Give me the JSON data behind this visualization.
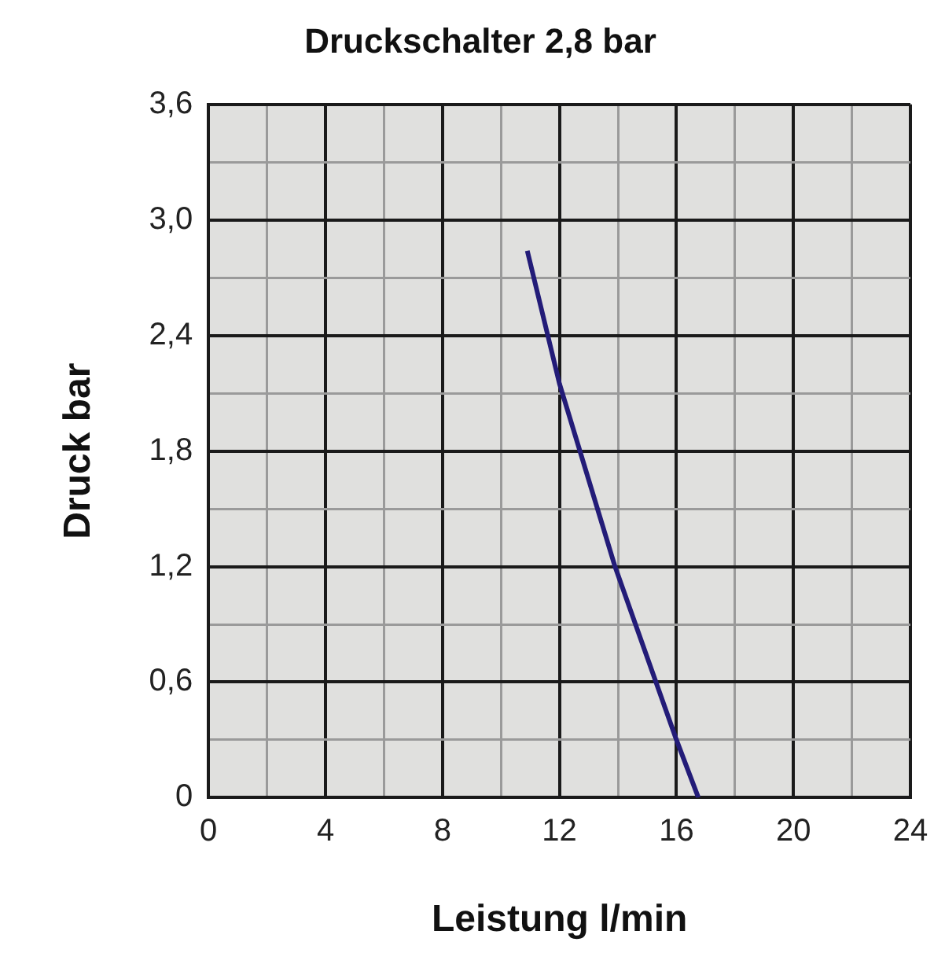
{
  "chart_data": {
    "type": "line",
    "title": "Druckschalter 2,8 bar",
    "xlabel": "Leistung l/min",
    "ylabel": "Druck bar",
    "x": [
      10.9,
      12,
      13.9,
      16,
      16.75
    ],
    "series": [
      {
        "color": "#231c78",
        "values": [
          2.84,
          2.15,
          1.2,
          0.3,
          0
        ]
      }
    ],
    "xlim": [
      0,
      24
    ],
    "xticks": [
      0,
      {
        "value": 2,
        "label": null
      },
      4,
      {
        "value": 6,
        "label": null
      },
      8,
      {
        "value": 10,
        "label": null
      },
      12,
      {
        "value": 14,
        "label": null
      },
      16,
      {
        "value": 18,
        "label": null
      },
      20,
      {
        "value": 22,
        "label": null
      },
      24
    ],
    "ylim": [
      0,
      3.6
    ],
    "yticks": [
      0,
      {
        "value": 0.3,
        "label": null
      },
      {
        "value": 0.6,
        "label": "0,6"
      },
      {
        "value": 0.9,
        "label": null
      },
      {
        "value": 1.2,
        "label": "1,2"
      },
      {
        "value": 1.5,
        "label": null
      },
      {
        "value": 1.8,
        "label": "1,8"
      },
      {
        "value": 2.1,
        "label": null
      },
      {
        "value": 2.4,
        "label": "2,4"
      },
      {
        "value": 2.7,
        "label": null
      },
      {
        "value": 3.0,
        "label": "3,0"
      },
      {
        "value": 3.3,
        "label": null
      },
      {
        "value": 3.6,
        "label": "3,6"
      }
    ],
    "grid": true,
    "legend": false,
    "marker": "none",
    "line_style": "solid"
  }
}
